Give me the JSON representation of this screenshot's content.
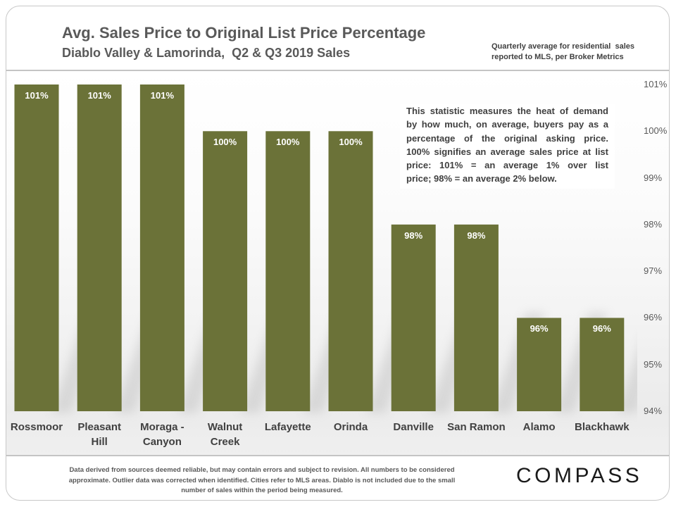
{
  "chart_data": {
    "type": "bar",
    "title": "Avg. Sales Price to Original List Price Percentage",
    "subtitle": "Diablo Valley & Lamorinda,  Q2 & Q3 2019 Sales",
    "xlabel": "",
    "ylabel": "",
    "categories": [
      "Rossmoor",
      "Pleasant Hill",
      "Moraga - Canyon",
      "Walnut Creek",
      "Lafayette",
      "Orinda",
      "Danville",
      "San Ramon",
      "Alamo",
      "Blackhawk"
    ],
    "values": [
      101,
      101,
      101,
      100,
      100,
      100,
      98,
      98,
      96,
      96
    ],
    "value_suffix": "%",
    "ylim": [
      94,
      101
    ],
    "yticks": [
      94,
      95,
      96,
      97,
      98,
      99,
      100,
      101
    ],
    "y_axis_side": "right",
    "grid": false,
    "annotation_lines": [
      "This statistic measures the heat of demand",
      "by how much, on average, buyers pay as a",
      "percentage of the original asking price.",
      "100% signifies an average sales price at list",
      "price:  101% = an average 1% over list",
      "price; 98% = an average 2% below."
    ],
    "colors": {
      "bar": "#6b7238",
      "data_label": "#ffffff",
      "category_label": "#404040",
      "tick_label": "#595959",
      "title": "#595959",
      "annotation_text": "#404040"
    }
  },
  "source_note_lines": [
    "Quarterly average for residential  sales",
    "reported to MLS, per Broker Metrics"
  ],
  "footer": {
    "disclaimer_lines": [
      "Data derived from sources deemed reliable, but may contain errors and subject to revision. All numbers to be considered",
      "approximate. Outlier data was corrected when identified. Cities refer to MLS areas. Diablo is not included due to the small",
      "number of sales within the period being measured."
    ],
    "logo_text": "COMPASS"
  }
}
